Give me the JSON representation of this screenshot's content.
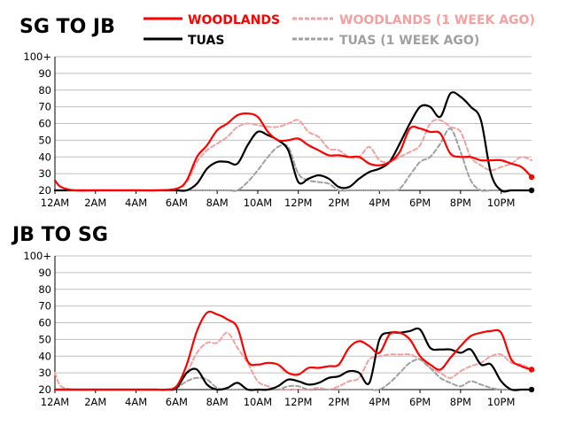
{
  "legend": {
    "woodlands": "WOODLANDS",
    "woodlands_prev": "WOODLANDS (1 WEEK AGO)",
    "tuas": "TUAS",
    "tuas_prev": "TUAS (1 WEEK AGO)"
  },
  "colors": {
    "woodlands": "#ff0000",
    "woodlands_prev": "#f4a0a0",
    "tuas": "#000000",
    "tuas_prev": "#a0a0a0",
    "grid": "#bfbfbf"
  },
  "chart_data": [
    {
      "type": "line",
      "title": "SG TO JB",
      "xlabel": "",
      "ylabel": "",
      "xlim": [
        0,
        23.5
      ],
      "ylim": [
        20,
        100
      ],
      "y_ticks": [
        "20",
        "30",
        "40",
        "50",
        "60",
        "70",
        "80",
        "90",
        "100+"
      ],
      "x_ticks": [
        "12AM",
        "2AM",
        "4AM",
        "6AM",
        "8AM",
        "10AM",
        "12PM",
        "2PM",
        "4PM",
        "6PM",
        "8PM",
        "10PM"
      ],
      "grid": true,
      "series": [
        {
          "name": "WOODLANDS",
          "x": [
            0,
            0.3,
            1,
            2,
            3,
            4,
            5,
            6,
            6.5,
            7,
            7.5,
            8,
            8.5,
            9,
            9.5,
            10,
            10.5,
            11,
            11.5,
            12,
            12.5,
            13,
            13.5,
            14,
            14.5,
            15,
            15.5,
            16,
            16.5,
            17,
            17.5,
            18,
            18.5,
            19,
            19.5,
            20,
            20.5,
            21,
            21.5,
            22,
            22.5,
            23,
            23.5
          ],
          "y": [
            26,
            22,
            20,
            20,
            20,
            20,
            20,
            21,
            26,
            40,
            47,
            56,
            60,
            65,
            66,
            64,
            55,
            50,
            50,
            51,
            47,
            44,
            41,
            41,
            40,
            40,
            36,
            35,
            37,
            43,
            57,
            57,
            55,
            54,
            42,
            40,
            40,
            38,
            38,
            38,
            36,
            34,
            28
          ]
        },
        {
          "name": "WOODLANDS (1 WEEK AGO)",
          "x": [
            0,
            1,
            2,
            3,
            4,
            5,
            6,
            6.5,
            7,
            7.5,
            8,
            8.5,
            9,
            9.5,
            10,
            10.5,
            11,
            11.5,
            12,
            12.5,
            13,
            13.5,
            14,
            14.5,
            15,
            15.5,
            16,
            16.5,
            17,
            17.5,
            18,
            18.5,
            19,
            19.5,
            20,
            20.5,
            21,
            21.5,
            22,
            22.5,
            23,
            23.5
          ],
          "y": [
            20,
            20,
            20,
            20,
            20,
            20,
            21,
            25,
            37,
            44,
            48,
            52,
            58,
            60,
            59,
            58,
            58,
            60,
            62,
            55,
            52,
            45,
            44,
            40,
            40,
            46,
            38,
            37,
            40,
            43,
            47,
            60,
            62,
            58,
            55,
            40,
            35,
            32,
            34,
            36,
            40,
            38
          ]
        },
        {
          "name": "TUAS",
          "x": [
            0,
            1,
            2,
            3,
            4,
            5,
            6,
            6.5,
            7,
            7.5,
            8,
            8.5,
            9,
            9.5,
            10,
            10.5,
            11,
            11.5,
            12,
            12.5,
            13,
            13.5,
            14,
            14.5,
            15,
            15.5,
            16,
            16.5,
            17,
            17.5,
            18,
            18.5,
            19,
            19.5,
            20,
            20.5,
            21,
            21.5,
            22,
            22.5,
            23,
            23.5
          ],
          "y": [
            20,
            20,
            20,
            20,
            20,
            20,
            20,
            20,
            24,
            33,
            37,
            37,
            36,
            47,
            55,
            53,
            50,
            44,
            25,
            27,
            29,
            27,
            22,
            22,
            27,
            31,
            33,
            37,
            48,
            60,
            70,
            70,
            64,
            78,
            76,
            70,
            62,
            30,
            20,
            20,
            20,
            20
          ]
        },
        {
          "name": "TUAS (1 WEEK AGO)",
          "x": [
            0,
            1,
            2,
            3,
            4,
            5,
            6,
            6.5,
            7,
            7.5,
            8,
            8.5,
            9,
            9.5,
            10,
            10.5,
            11,
            11.5,
            12,
            12.5,
            13,
            13.5,
            14,
            14.5,
            15,
            15.5,
            16,
            16.5,
            17,
            17.5,
            18,
            18.5,
            19,
            19.5,
            20,
            20.5,
            21,
            21.5,
            22,
            22.5,
            23,
            23.5
          ],
          "y": [
            20,
            20,
            20,
            20,
            20,
            20,
            20,
            20,
            20,
            20,
            20,
            20,
            20,
            25,
            32,
            40,
            46,
            46,
            30,
            26,
            25,
            24,
            20,
            20,
            20,
            20,
            20,
            20,
            21,
            29,
            37,
            40,
            48,
            57,
            43,
            26,
            20,
            20,
            20,
            20,
            20,
            20
          ]
        }
      ]
    },
    {
      "type": "line",
      "title": "JB TO SG",
      "xlabel": "",
      "ylabel": "",
      "xlim": [
        0,
        23.5
      ],
      "ylim": [
        20,
        100
      ],
      "y_ticks": [
        "20",
        "30",
        "40",
        "50",
        "60",
        "70",
        "80",
        "90",
        "100+"
      ],
      "x_ticks": [
        "12AM",
        "2AM",
        "4AM",
        "6AM",
        "8AM",
        "10AM",
        "12PM",
        "2PM",
        "4PM",
        "6PM",
        "8PM",
        "10PM"
      ],
      "grid": true,
      "series": [
        {
          "name": "WOODLANDS",
          "x": [
            0,
            1,
            2,
            3,
            4,
            5,
            5.5,
            6,
            6.5,
            7,
            7.5,
            8,
            8.5,
            9,
            9.5,
            10,
            10.5,
            11,
            11.5,
            12,
            12.5,
            13,
            13.5,
            14,
            14.5,
            15,
            15.5,
            16,
            16.5,
            17,
            17.5,
            18,
            18.5,
            19,
            19.5,
            20,
            20.5,
            21,
            21.5,
            22,
            22.5,
            23,
            23.5
          ],
          "y": [
            20,
            20,
            20,
            20,
            20,
            20,
            20,
            22,
            35,
            55,
            66,
            65,
            62,
            57,
            37,
            35,
            36,
            35,
            30,
            29,
            33,
            33,
            34,
            35,
            45,
            49,
            46,
            42,
            53,
            54,
            50,
            40,
            35,
            32,
            39,
            46,
            52,
            54,
            55,
            54,
            38,
            34,
            32
          ]
        },
        {
          "name": "WOODLANDS (1 WEEK AGO)",
          "x": [
            0,
            0.3,
            1,
            2,
            3,
            4,
            5,
            5.5,
            6,
            6.5,
            7,
            7.5,
            8,
            8.5,
            9,
            9.5,
            10,
            10.5,
            11,
            11.5,
            12,
            12.5,
            13,
            13.5,
            14,
            14.5,
            15,
            15.5,
            16,
            16.5,
            17,
            17.5,
            18,
            18.5,
            19,
            19.5,
            20,
            20.5,
            21,
            21.5,
            22,
            22.5,
            23,
            23.5
          ],
          "y": [
            30,
            22,
            20,
            20,
            20,
            20,
            20,
            20,
            22,
            30,
            42,
            48,
            48,
            54,
            45,
            36,
            25,
            22,
            20,
            20,
            20,
            20,
            21,
            20,
            22,
            25,
            27,
            38,
            40,
            41,
            41,
            41,
            38,
            33,
            30,
            27,
            31,
            34,
            36,
            40,
            41,
            36,
            35,
            32
          ]
        },
        {
          "name": "TUAS",
          "x": [
            0,
            1,
            2,
            3,
            4,
            5,
            5.5,
            6,
            6.5,
            7,
            7.5,
            8,
            8.5,
            9,
            9.5,
            10,
            10.5,
            11,
            11.5,
            12,
            12.5,
            13,
            13.5,
            14,
            14.5,
            15,
            15.5,
            16,
            16.5,
            17,
            17.5,
            18,
            18.5,
            19,
            19.5,
            20,
            20.5,
            21,
            21.5,
            22,
            22.5,
            23,
            23.5
          ],
          "y": [
            20,
            20,
            20,
            20,
            20,
            20,
            20,
            21,
            30,
            32,
            23,
            20,
            21,
            24,
            20,
            20,
            20,
            22,
            26,
            25,
            23,
            24,
            27,
            28,
            31,
            30,
            24,
            50,
            54,
            54,
            55,
            56,
            45,
            44,
            44,
            42,
            44,
            35,
            35,
            25,
            20,
            20,
            20
          ]
        },
        {
          "name": "TUAS (1 WEEK AGO)",
          "x": [
            0,
            1,
            2,
            3,
            4,
            5,
            5.5,
            6,
            6.5,
            7,
            7.5,
            8,
            8.5,
            9,
            9.5,
            10,
            10.5,
            11,
            11.5,
            12,
            12.5,
            13,
            13.5,
            14,
            14.5,
            15,
            15.5,
            16,
            16.5,
            17,
            17.5,
            18,
            18.5,
            19,
            19.5,
            20,
            20.5,
            21,
            21.5,
            22,
            22.5,
            23,
            23.5
          ],
          "y": [
            20,
            20,
            20,
            20,
            20,
            20,
            20,
            21,
            25,
            27,
            26,
            21,
            20,
            20,
            20,
            20,
            20,
            20,
            22,
            22,
            20,
            20,
            20,
            20,
            20,
            20,
            20,
            20,
            24,
            30,
            36,
            38,
            33,
            27,
            24,
            22,
            25,
            23,
            21,
            20,
            20,
            20,
            20
          ]
        }
      ]
    }
  ]
}
